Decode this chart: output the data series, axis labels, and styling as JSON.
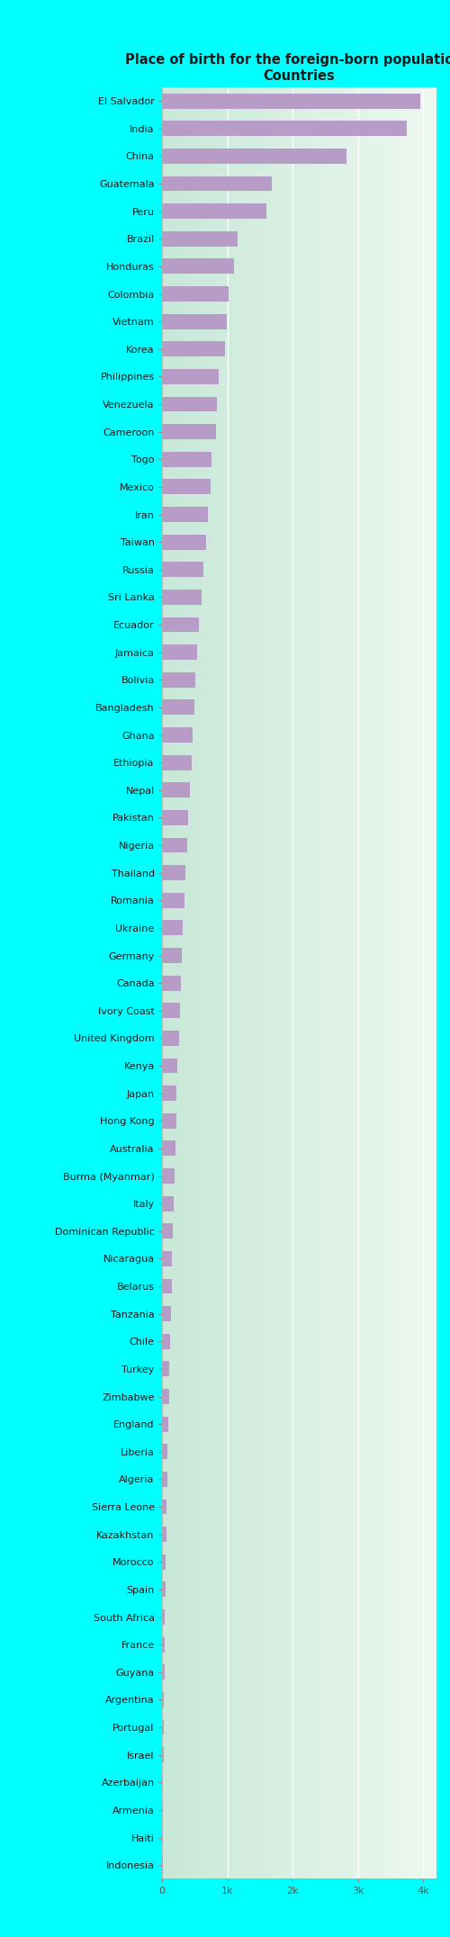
{
  "title": "Place of birth for the foreign-born population -\nCountries",
  "categories": [
    "El Salvador",
    "India",
    "China",
    "Guatemala",
    "Peru",
    "Brazil",
    "Honduras",
    "Colombia",
    "Vietnam",
    "Korea",
    "Philippines",
    "Venezuela",
    "Cameroon",
    "Togo",
    "Mexico",
    "Iran",
    "Taiwan",
    "Russia",
    "Sri Lanka",
    "Ecuador",
    "Jamaica",
    "Bolivia",
    "Bangladesh",
    "Ghana",
    "Ethiopia",
    "Nepal",
    "Pakistan",
    "Nigeria",
    "Thailand",
    "Romania",
    "Ukraine",
    "Germany",
    "Canada",
    "Ivory Coast",
    "United Kingdom",
    "Kenya",
    "Japan",
    "Hong Kong",
    "Australia",
    "Burma (Myanmar)",
    "Italy",
    "Dominican Republic",
    "Nicaragua",
    "Belarus",
    "Tanzania",
    "Chile",
    "Turkey",
    "Zimbabwe",
    "England",
    "Liberia",
    "Algeria",
    "Sierra Leone",
    "Kazakhstan",
    "Morocco",
    "Spain",
    "South Africa",
    "France",
    "Guyana",
    "Argentina",
    "Portugal",
    "Israel",
    "Azerbaijan",
    "Armenia",
    "Haiti",
    "Indonesia"
  ],
  "values": [
    3950,
    3750,
    2820,
    1680,
    1600,
    1150,
    1100,
    1020,
    990,
    960,
    870,
    840,
    820,
    760,
    740,
    700,
    670,
    630,
    600,
    570,
    540,
    510,
    490,
    470,
    450,
    420,
    400,
    380,
    360,
    340,
    320,
    300,
    285,
    270,
    255,
    240,
    225,
    215,
    200,
    190,
    175,
    165,
    155,
    145,
    135,
    125,
    115,
    105,
    95,
    88,
    80,
    72,
    65,
    58,
    52,
    46,
    40,
    35,
    30,
    26,
    22,
    18,
    14,
    11,
    8
  ],
  "bar_color": "#b89cc8",
  "bg_color": "#00ffff",
  "plot_bg_left": "#d4ede4",
  "plot_bg_right": "#f0f8f0",
  "grid_color": "#ffffff",
  "title_color": "#1a1a1a",
  "label_color": "#1a1a1a",
  "tick_color": "#555555",
  "xlim": [
    0,
    4200
  ],
  "xticks": [
    0,
    1000,
    2000,
    3000,
    4000
  ],
  "xticklabels": [
    "0",
    "1k",
    "2k",
    "3k",
    "4k"
  ],
  "label_fontsize": 8.0,
  "tick_fontsize": 8.0,
  "title_fontsize": 10.5
}
